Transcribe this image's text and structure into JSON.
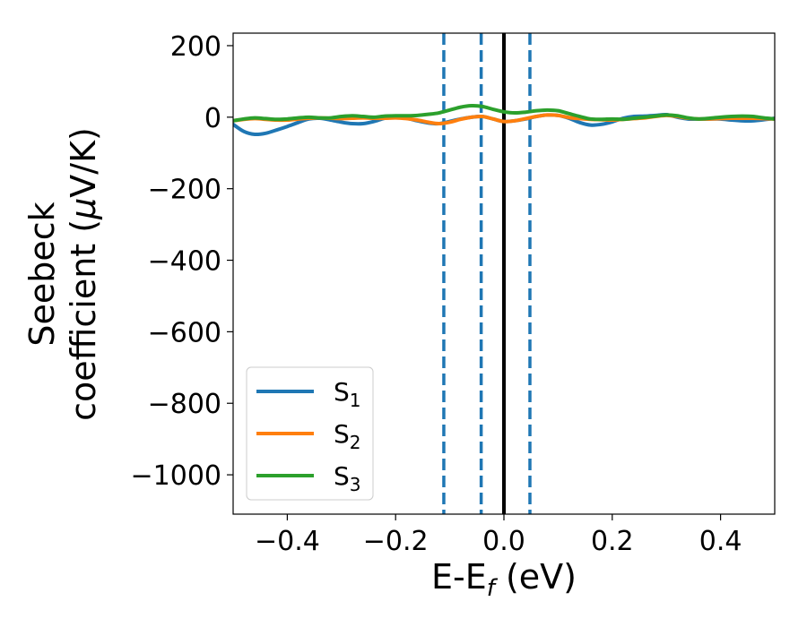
{
  "chart_data": {
    "type": "line",
    "title": "",
    "xlabel": "E-E",
    "xlabel_sub": "f",
    "xlabel_unit": " (eV)",
    "ylabel_line1": "Seebeck",
    "ylabel_line2": "coefficient  (",
    "ylabel_mu": "μ",
    "ylabel_unit": "V/K)",
    "xlim": [
      -0.5,
      0.5
    ],
    "ylim": [
      -1110,
      235
    ],
    "xticks": [
      -0.4,
      -0.2,
      0.0,
      0.2,
      0.4
    ],
    "xtick_labels": [
      "−0.4",
      "−0.2",
      "0.0",
      "0.2",
      "0.4"
    ],
    "yticks": [
      200,
      0,
      -200,
      -400,
      -600,
      -800,
      -1000
    ],
    "ytick_labels": [
      "200",
      "0",
      "−200",
      "−400",
      "−600",
      "−800",
      "−1000"
    ],
    "grid": false,
    "legend_position": "lower-left",
    "vlines": [
      {
        "x": 0.0,
        "color": "#000000",
        "style": "solid"
      },
      {
        "x": -0.111,
        "color": "#1f77b4",
        "style": "dashed"
      },
      {
        "x": -0.042,
        "color": "#1f77b4",
        "style": "dashed"
      },
      {
        "x": 0.048,
        "color": "#1f77b4",
        "style": "dashed"
      }
    ],
    "series": [
      {
        "name": "S",
        "sub": "1",
        "color": "#1f77b4",
        "x": [
          -0.5,
          -0.48,
          -0.46,
          -0.44,
          -0.42,
          -0.4,
          -0.38,
          -0.36,
          -0.34,
          -0.32,
          -0.3,
          -0.28,
          -0.26,
          -0.24,
          -0.22,
          -0.2,
          -0.18,
          -0.16,
          -0.14,
          -0.12,
          -0.1,
          -0.08,
          -0.06,
          -0.04,
          -0.02,
          0.0,
          0.02,
          0.04,
          0.06,
          0.08,
          0.1,
          0.12,
          0.14,
          0.16,
          0.18,
          0.2,
          0.22,
          0.24,
          0.26,
          0.28,
          0.3,
          0.32,
          0.34,
          0.36,
          0.38,
          0.4,
          0.42,
          0.44,
          0.46,
          0.48,
          0.5
        ],
        "y": [
          -20,
          -40,
          -48,
          -45,
          -36,
          -26,
          -15,
          -5,
          -3,
          -8,
          -14,
          -18,
          -18,
          -12,
          -3,
          0,
          -3,
          -10,
          -16,
          -18,
          -12,
          -5,
          0,
          2,
          -5,
          -12,
          -10,
          -5,
          2,
          6,
          5,
          -3,
          -15,
          -22,
          -20,
          -13,
          -3,
          2,
          3,
          5,
          7,
          0,
          -5,
          -5,
          -5,
          -5,
          -8,
          -10,
          -10,
          -7,
          -3
        ]
      },
      {
        "name": "S",
        "sub": "2",
        "color": "#ff7f0e",
        "x": [
          -0.5,
          -0.48,
          -0.46,
          -0.44,
          -0.42,
          -0.4,
          -0.38,
          -0.36,
          -0.34,
          -0.32,
          -0.3,
          -0.28,
          -0.26,
          -0.24,
          -0.22,
          -0.2,
          -0.18,
          -0.16,
          -0.14,
          -0.12,
          -0.1,
          -0.08,
          -0.06,
          -0.04,
          -0.02,
          0.0,
          0.02,
          0.04,
          0.06,
          0.08,
          0.1,
          0.12,
          0.14,
          0.16,
          0.18,
          0.2,
          0.22,
          0.24,
          0.26,
          0.28,
          0.3,
          0.32,
          0.34,
          0.36,
          0.38,
          0.4,
          0.42,
          0.44,
          0.46,
          0.48,
          0.5
        ],
        "y": [
          -10,
          -6,
          -4,
          -6,
          -8,
          -8,
          -5,
          -3,
          -2,
          -3,
          -4,
          -3,
          -2,
          -3,
          -3,
          -2,
          -4,
          -8,
          -14,
          -18,
          -14,
          -6,
          0,
          2,
          -5,
          -12,
          -10,
          -4,
          2,
          6,
          5,
          -1,
          -4,
          -6,
          -7,
          -8,
          -6,
          -4,
          -2,
          2,
          5,
          2,
          -3,
          -5,
          -5,
          -4,
          -3,
          -3,
          -3,
          -4,
          -5
        ]
      },
      {
        "name": "S",
        "sub": "3",
        "color": "#2ca02c",
        "x": [
          -0.5,
          -0.48,
          -0.46,
          -0.44,
          -0.42,
          -0.4,
          -0.38,
          -0.36,
          -0.34,
          -0.32,
          -0.3,
          -0.28,
          -0.26,
          -0.24,
          -0.22,
          -0.2,
          -0.18,
          -0.16,
          -0.14,
          -0.12,
          -0.1,
          -0.08,
          -0.06,
          -0.04,
          -0.02,
          0.0,
          0.02,
          0.04,
          0.06,
          0.08,
          0.1,
          0.12,
          0.14,
          0.16,
          0.18,
          0.2,
          0.22,
          0.24,
          0.26,
          0.28,
          0.3,
          0.32,
          0.34,
          0.36,
          0.38,
          0.4,
          0.42,
          0.44,
          0.46,
          0.48,
          0.5
        ],
        "y": [
          -10,
          -5,
          -2,
          -4,
          -6,
          -5,
          -2,
          0,
          -2,
          -2,
          2,
          4,
          2,
          0,
          3,
          4,
          4,
          5,
          8,
          12,
          20,
          28,
          32,
          30,
          22,
          15,
          12,
          14,
          18,
          20,
          18,
          10,
          2,
          -5,
          -6,
          -5,
          -6,
          -3,
          0,
          3,
          6,
          4,
          -2,
          -5,
          -3,
          0,
          2,
          3,
          2,
          -2,
          -5
        ]
      }
    ]
  }
}
